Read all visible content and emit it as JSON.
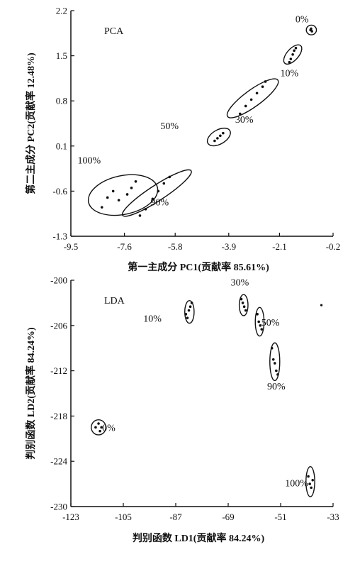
{
  "chart_data": [
    {
      "type": "scatter",
      "panel_label": "PCA",
      "xlabel": "第一主成分 PC1(贡献率 85.61%)",
      "ylabel": "第二主成分 PC2(贡献率 12.48%)",
      "xlim": [
        -9.5,
        -0.2
      ],
      "ylim": [
        -1.3,
        2.2
      ],
      "xticks": [
        "-9.5",
        "-7.6",
        "-5.8",
        "-3.9",
        "-2.1",
        "-0.2"
      ],
      "xtick_values": [
        -9.5,
        -7.6,
        -5.8,
        -3.9,
        -2.1,
        -0.2
      ],
      "yticks": [
        "2.2",
        "1.5",
        "0.8",
        "0.1",
        "-0.6",
        "-1.3"
      ],
      "ytick_values": [
        2.2,
        1.5,
        0.8,
        0.1,
        -0.6,
        -1.3
      ],
      "groups": [
        {
          "label": "0%",
          "label_x": -1.3,
          "label_y": 2.02,
          "points": [
            [
              -1.0,
              1.9
            ],
            [
              -0.95,
              1.88
            ],
            [
              -0.98,
              1.92
            ]
          ],
          "ellipse": {
            "cx": -0.97,
            "cy": 1.9,
            "rx": 0.18,
            "ry": 0.075,
            "angle": 0
          }
        },
        {
          "label": "10%",
          "label_x": -1.75,
          "label_y": 1.18,
          "points": [
            [
              -1.75,
              1.4
            ],
            [
              -1.7,
              1.45
            ],
            [
              -1.63,
              1.52
            ],
            [
              -1.58,
              1.58
            ],
            [
              -1.52,
              1.62
            ]
          ],
          "ellipse": {
            "cx": -1.63,
            "cy": 1.52,
            "rx": 0.42,
            "ry": 0.09,
            "angle": 48
          }
        },
        {
          "label": "30%",
          "label_x": -3.35,
          "label_y": 0.46,
          "points": [
            [
              -3.5,
              0.6
            ],
            [
              -3.3,
              0.72
            ],
            [
              -3.1,
              0.82
            ],
            [
              -2.9,
              0.92
            ],
            [
              -2.7,
              1.02
            ],
            [
              -2.6,
              1.1
            ]
          ],
          "ellipse": {
            "cx": -3.05,
            "cy": 0.84,
            "rx": 1.1,
            "ry": 0.13,
            "angle": 36
          }
        },
        {
          "label": "50%",
          "label_x": -6.0,
          "label_y": 0.36,
          "points": [
            [
              -4.4,
              0.18
            ],
            [
              -4.3,
              0.22
            ],
            [
              -4.2,
              0.26
            ],
            [
              -4.1,
              0.3
            ]
          ],
          "ellipse": {
            "cx": -4.25,
            "cy": 0.24,
            "rx": 0.45,
            "ry": 0.11,
            "angle": 30
          }
        },
        {
          "label": "90%",
          "label_x": -6.35,
          "label_y": -0.82,
          "points": [
            [
              -7.05,
              -0.98
            ],
            [
              -6.85,
              -0.88
            ],
            [
              -6.6,
              -0.72
            ],
            [
              -6.4,
              -0.6
            ],
            [
              -6.2,
              -0.48
            ],
            [
              -6.0,
              -0.38
            ]
          ],
          "ellipse": {
            "cx": -6.45,
            "cy": -0.63,
            "rx": 1.45,
            "ry": 0.12,
            "angle": 33
          }
        },
        {
          "label": "100%",
          "label_x": -8.85,
          "label_y": -0.17,
          "points": [
            [
              -8.4,
              -0.85
            ],
            [
              -8.2,
              -0.7
            ],
            [
              -8.0,
              -0.6
            ],
            [
              -7.8,
              -0.74
            ],
            [
              -7.5,
              -0.65
            ],
            [
              -7.35,
              -0.55
            ],
            [
              -7.2,
              -0.45
            ]
          ],
          "ellipse": {
            "cx": -7.65,
            "cy": -0.66,
            "rx": 1.25,
            "ry": 0.3,
            "angle": 12
          }
        }
      ]
    },
    {
      "type": "scatter",
      "panel_label": "LDA",
      "xlabel": "判别函数 LD1(贡献率 84.24%)",
      "ylabel": "判别函数 LD2(贡献率 84.24%)",
      "xlim": [
        -123,
        -33
      ],
      "ylim": [
        -230,
        -200
      ],
      "xticks": [
        "-123",
        "-105",
        "-87",
        "-69",
        "-51",
        "-33"
      ],
      "xtick_values": [
        -123,
        -105,
        -87,
        -69,
        -51,
        -33
      ],
      "yticks": [
        "-200",
        "-206",
        "-212",
        "-218",
        "-224",
        "-230"
      ],
      "ytick_values": [
        -200,
        -206,
        -212,
        -218,
        -224,
        -230
      ],
      "outlier": [
        [
          -37,
          -203.3
        ]
      ],
      "groups": [
        {
          "label": "0%",
          "label_x": -110,
          "label_y": -220,
          "points": [
            [
              -114.5,
              -219.5
            ],
            [
              -113.5,
              -219.0
            ],
            [
              -112.5,
              -219.5
            ],
            [
              -113.0,
              -220.0
            ]
          ],
          "ellipse": {
            "cx": -113.5,
            "cy": -219.5,
            "rx": 2.5,
            "ry": 1.0,
            "angle": 0
          }
        },
        {
          "label": "10%",
          "label_x": -95,
          "label_y": -205.5,
          "points": [
            [
              -83.5,
              -204.5
            ],
            [
              -83.0,
              -205.0
            ],
            [
              -82.5,
              -204.0
            ],
            [
              -82.0,
              -203.5
            ],
            [
              -81.5,
              -203.0
            ]
          ],
          "ellipse": {
            "cx": -82.3,
            "cy": -204.2,
            "rx": 1.6,
            "ry": 1.5,
            "angle": 0
          }
        },
        {
          "label": "30%",
          "label_x": -65,
          "label_y": -200.7,
          "points": [
            [
              -64.5,
              -202.5
            ],
            [
              -64.0,
              -203.0
            ],
            [
              -63.5,
              -203.5
            ],
            [
              -63.0,
              -204.0
            ]
          ],
          "ellipse": {
            "cx": -63.7,
            "cy": -203.3,
            "rx": 1.5,
            "ry": 1.4,
            "angle": 0
          }
        },
        {
          "label": "50%",
          "label_x": -54.5,
          "label_y": -206,
          "points": [
            [
              -59.0,
              -204.5
            ],
            [
              -58.5,
              -205.5
            ],
            [
              -58.0,
              -206.0
            ],
            [
              -57.5,
              -206.5
            ]
          ],
          "ellipse": {
            "cx": -58.2,
            "cy": -205.5,
            "rx": 1.5,
            "ry": 1.9,
            "angle": 0
          }
        },
        {
          "label": "90%",
          "label_x": -52.5,
          "label_y": -214.5,
          "points": [
            [
              -54.0,
              -209.0
            ],
            [
              -53.5,
              -210.5
            ],
            [
              -53.0,
              -211.0
            ],
            [
              -52.5,
              -212.0
            ],
            [
              -52.0,
              -212.5
            ]
          ],
          "ellipse": {
            "cx": -53.0,
            "cy": -210.8,
            "rx": 1.7,
            "ry": 2.5,
            "angle": 0
          }
        },
        {
          "label": "100%",
          "label_x": -45.5,
          "label_y": -227.3,
          "points": [
            [
              -41.5,
              -226.0
            ],
            [
              -41.0,
              -227.0
            ],
            [
              -40.5,
              -227.5
            ],
            [
              -40.0,
              -226.5
            ]
          ],
          "ellipse": {
            "cx": -40.8,
            "cy": -226.7,
            "rx": 1.5,
            "ry": 2.0,
            "angle": 0
          }
        }
      ]
    }
  ]
}
